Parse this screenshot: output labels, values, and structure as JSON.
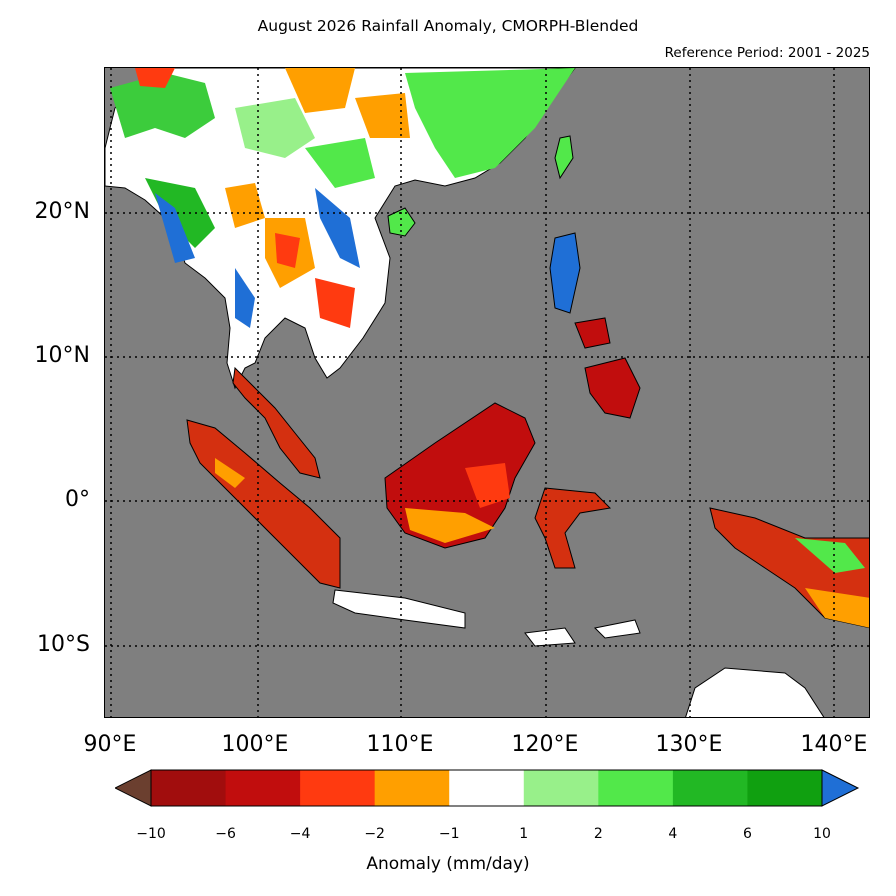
{
  "title": "August 2026 Rainfall Anomaly, CMORPH-Blended",
  "subtitle": "Reference Period: 2001 - 2025",
  "lat_labels": [
    "20°N",
    "10°N",
    "0°",
    "10°S"
  ],
  "lon_labels": [
    "90°E",
    "100°E",
    "110°E",
    "120°E",
    "130°E",
    "140°E"
  ],
  "colorbar": {
    "title": "Anomaly (mm/day)",
    "tick_labels": [
      "−10",
      "−6",
      "−4",
      "−2",
      "−1",
      "1",
      "2",
      "4",
      "6",
      "10"
    ],
    "low_extend_color": "#6b3f2f",
    "high_extend_color": "#1f6fd6",
    "bins": [
      "#a10d0d",
      "#c10d0d",
      "#ff3a10",
      "#ff9f00",
      "#ffffff",
      "#98f08a",
      "#52e84a",
      "#22b824",
      "#10a010"
    ]
  },
  "colors": {
    "ocean": "#7f7f7f",
    "land_dry": "#d43010",
    "land_wet": "#3ccc3c",
    "normal": "#ffffff"
  }
}
